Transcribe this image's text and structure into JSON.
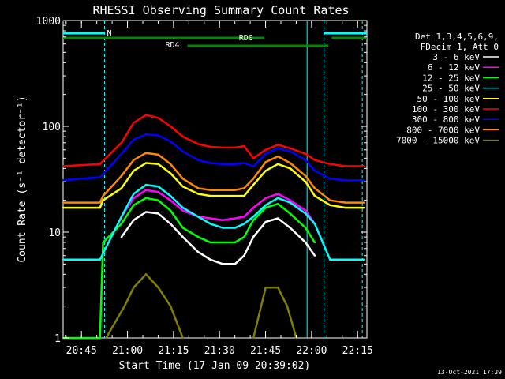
{
  "chart_data": {
    "type": "line",
    "title": "RHESSI Observing Summary Count Rates",
    "xlabel": "Start Time (17-Jan-09 20:39:02)",
    "ylabel": "Count Rate (s⁻¹ detector⁻¹)",
    "yscale": "log",
    "ylim": [
      1,
      1000
    ],
    "xlim_minutes": [
      0,
      99
    ],
    "x_tick_labels": [
      "20:45",
      "21:00",
      "21:15",
      "21:30",
      "21:45",
      "22:00",
      "22:15"
    ],
    "x_tick_minutes": [
      5.97,
      20.97,
      35.97,
      50.97,
      65.97,
      80.97,
      95.97
    ],
    "y_tick_labels": [
      "1",
      "10",
      "100",
      "1000"
    ],
    "y_tick_values": [
      1,
      10,
      100,
      1000
    ],
    "legend_header": [
      "Det 1,3,4,5,6,9,",
      "FDecim 1, Att 0"
    ],
    "legend_position": "right",
    "series": [
      {
        "name": "3 - 6 keV",
        "color": "#ffffff",
        "x": [
          0,
          13,
          19,
          23,
          27,
          31,
          35,
          39,
          44,
          48,
          52,
          56,
          59,
          62,
          66,
          70,
          74,
          79,
          82
        ],
        "values": [
          null,
          null,
          9,
          13,
          15.5,
          15,
          12,
          9,
          6.5,
          5.5,
          5,
          5,
          6,
          9,
          12.5,
          13.5,
          11,
          8,
          6
        ]
      },
      {
        "name": "6 - 12 keV",
        "color": "#ff00ff",
        "x": [
          0,
          13,
          19,
          23,
          27,
          31,
          35,
          39,
          44,
          48,
          52,
          56,
          59,
          62,
          66,
          70,
          74,
          79,
          82
        ],
        "values": [
          null,
          null,
          14,
          21,
          25,
          24,
          20,
          16,
          14,
          13.5,
          13,
          13.5,
          14,
          17,
          21,
          23,
          20,
          16,
          12
        ]
      },
      {
        "name": "12 - 25 keV",
        "color": "#00ff00",
        "x": [
          0,
          12,
          13,
          19,
          23,
          27,
          31,
          35,
          39,
          44,
          48,
          52,
          56,
          59,
          62,
          66,
          70,
          74,
          79,
          82
        ],
        "values": [
          1,
          1,
          8,
          12,
          18,
          21,
          20,
          16,
          11,
          9,
          8,
          8,
          8,
          9,
          13,
          17,
          18.5,
          15,
          11,
          8
        ]
      },
      {
        "name": "25 - 50 keV",
        "color": "#00ffff",
        "x": [
          0,
          12,
          19,
          23,
          27,
          31,
          35,
          39,
          44,
          48,
          52,
          56,
          59,
          62,
          66,
          70,
          74,
          79,
          82,
          87,
          92,
          98
        ],
        "values": [
          5.5,
          5.5,
          14,
          23,
          28,
          27,
          22,
          17,
          14,
          12,
          11,
          11,
          12,
          14,
          18,
          21,
          19,
          15,
          12,
          5.5,
          5.5,
          5.5
        ]
      },
      {
        "name": "50 - 100 keV",
        "color": "#ffff00",
        "x": [
          0,
          12,
          13,
          19,
          23,
          27,
          31,
          35,
          39,
          44,
          48,
          52,
          56,
          59,
          62,
          66,
          70,
          74,
          79,
          82,
          87,
          92,
          98
        ],
        "values": [
          17,
          17,
          20,
          26,
          38,
          45,
          44,
          36,
          27,
          23,
          22,
          22,
          22,
          22,
          28,
          38,
          44,
          40,
          30,
          22,
          18,
          17,
          17
        ]
      },
      {
        "name": "100 - 300 keV",
        "color": "#ff0000",
        "x": [
          0,
          12,
          19,
          23,
          27,
          31,
          35,
          39,
          44,
          48,
          52,
          56,
          59,
          62,
          66,
          70,
          74,
          79,
          82,
          87,
          92,
          98
        ],
        "values": [
          42,
          44,
          70,
          108,
          128,
          120,
          100,
          80,
          68,
          64,
          63,
          63,
          65,
          50,
          60,
          67,
          62,
          55,
          48,
          44,
          42,
          42
        ]
      },
      {
        "name": "300 - 800 keV",
        "color": "#0000ff",
        "x": [
          0,
          12,
          19,
          23,
          27,
          31,
          35,
          39,
          44,
          48,
          52,
          56,
          59,
          62,
          66,
          70,
          74,
          79,
          82,
          87,
          92,
          98
        ],
        "values": [
          31,
          33,
          55,
          75,
          84,
          82,
          72,
          58,
          48,
          45,
          44,
          44,
          45,
          42,
          55,
          62,
          58,
          48,
          38,
          32,
          31,
          31
        ]
      },
      {
        "name": "800 - 7000 keV",
        "color": "#ff8800",
        "x": [
          0,
          12,
          13,
          19,
          23,
          27,
          31,
          35,
          39,
          44,
          48,
          52,
          56,
          59,
          62,
          66,
          70,
          74,
          79,
          82,
          87,
          92,
          98
        ],
        "values": [
          19,
          19,
          22,
          34,
          48,
          56,
          54,
          44,
          32,
          26,
          25,
          25,
          25,
          26,
          32,
          46,
          52,
          45,
          34,
          26,
          20,
          19,
          19
        ]
      },
      {
        "name": "7000 - 15000 keV",
        "color": "#808000",
        "x": [
          0,
          13,
          14,
          20,
          23,
          27,
          31,
          35,
          39,
          44,
          60,
          62,
          66,
          70,
          73,
          76,
          77
        ],
        "values": [
          null,
          null,
          1,
          2,
          3,
          4,
          3,
          2,
          1,
          null,
          null,
          1,
          3,
          3,
          2,
          1,
          null
        ]
      }
    ],
    "annotations": [
      {
        "label": "N",
        "bar_minutes": [
          0,
          13.5
        ],
        "color": "#00ffff"
      },
      {
        "label": "",
        "bar_minutes": [
          85,
          99
        ],
        "color": "#00ffff"
      },
      {
        "label": "RD0",
        "bar_minutes": [
          0,
          65.5
        ],
        "color": "#008800"
      },
      {
        "label": "",
        "bar_minutes": [
          87.5,
          99
        ],
        "color": "#008800"
      },
      {
        "label": "RD4",
        "bar_minutes": [
          40.5,
          86.5
        ],
        "color": "#008800"
      }
    ],
    "vertical_lines_minutes": [
      13.5,
      79.5,
      85,
      97.5
    ],
    "grid": false
  },
  "footer": {
    "timestamp": "13-Oct-2021 17:39"
  }
}
